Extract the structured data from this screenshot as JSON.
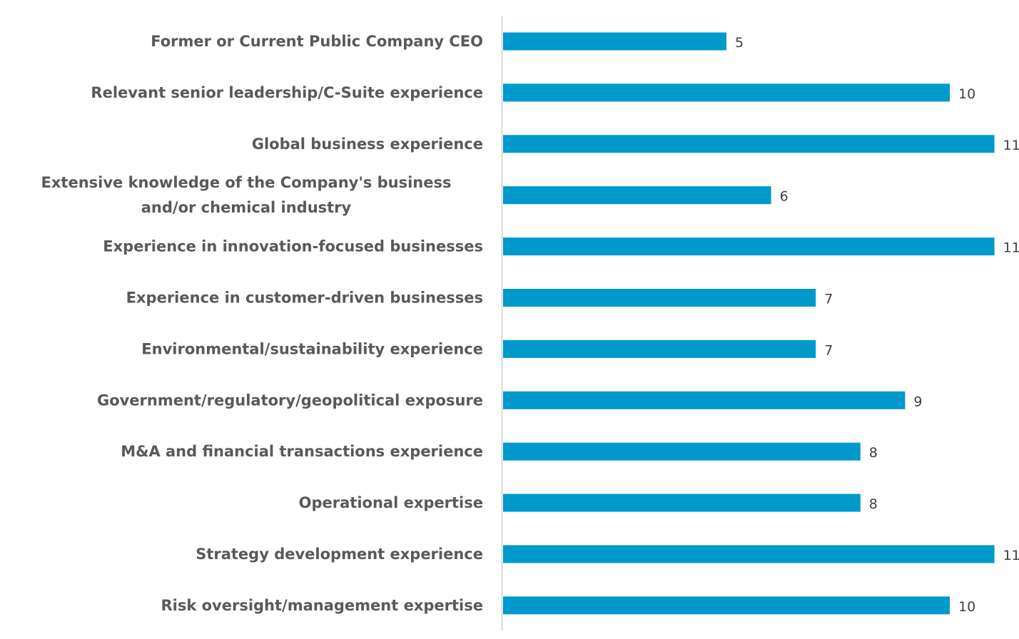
{
  "chart_data": {
    "type": "bar",
    "orientation": "horizontal",
    "categories": [
      "Former or Current Public Company CEO",
      "Relevant senior leadership/C-Suite experience",
      "Global business experience",
      "Extensive knowledge of the Company's business and/or chemical industry",
      "Experience in innovation-focused businesses",
      "Experience in customer-driven businesses",
      "Environmental/sustainability experience",
      "Government/regulatory/geopolitical exposure",
      "M&A and financial transactions experience",
      "Operational expertise",
      "Strategy development experience",
      "Risk oversight/management expertise"
    ],
    "category_lines": [
      [
        "Former or Current Public Company CEO"
      ],
      [
        "Relevant senior leadership/C-Suite experience"
      ],
      [
        "Global business experience"
      ],
      [
        "Extensive knowledge of the Company's business",
        "and/or chemical industry"
      ],
      [
        "Experience in innovation-focused businesses"
      ],
      [
        "Experience in customer-driven businesses"
      ],
      [
        "Environmental/sustainability experience"
      ],
      [
        "Government/regulatory/geopolitical exposure"
      ],
      [
        "M&A and financial transactions experience"
      ],
      [
        "Operational expertise"
      ],
      [
        "Strategy development experience"
      ],
      [
        "Risk oversight/management expertise"
      ]
    ],
    "values": [
      5,
      10,
      11,
      6,
      11,
      7,
      7,
      9,
      8,
      8,
      11,
      10
    ],
    "data_labels": true,
    "xlim": [
      0,
      11
    ],
    "grid": false,
    "legend": "none",
    "title": "",
    "xlabel": "",
    "ylabel": "",
    "colors": {
      "bar": "#0099CC",
      "axis": "#D9D9D9"
    }
  }
}
